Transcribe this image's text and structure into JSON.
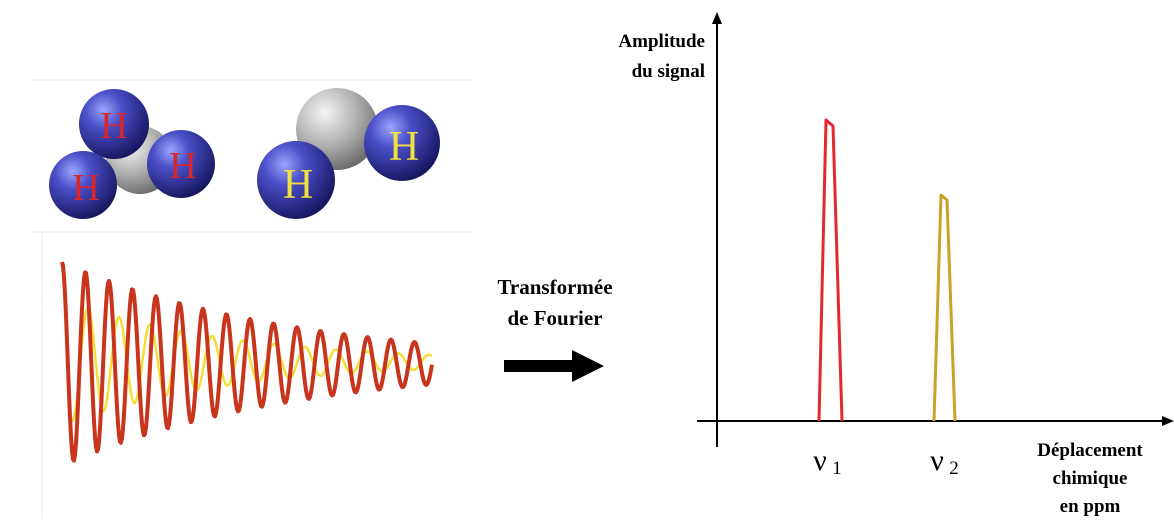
{
  "molecules": {
    "methyl_atom_label": "H",
    "methylene_atom_label": "H"
  },
  "arrow_label": {
    "line1": "Transformée",
    "line2": "de Fourier"
  },
  "spectrum": {
    "y_axis_label": {
      "line1": "Amplitude",
      "line2": "du signal"
    },
    "x_axis_label": {
      "line1": "Déplacement",
      "line2": "chimique",
      "line3": "en ppm"
    },
    "peaks": [
      {
        "symbol": "ν",
        "subscript": "1",
        "color": "#e4282e"
      },
      {
        "symbol": "ν",
        "subscript": "2",
        "color": "#c9a227"
      }
    ]
  },
  "colors": {
    "atom_blue": "#25257a",
    "label_red": "#d8262c",
    "label_yellow": "#f0e040",
    "carbon_grey": "#9a9a9a",
    "fid_red": "#c8341c",
    "fid_yellow": "#f2df3a",
    "arrow": "#000000"
  }
}
